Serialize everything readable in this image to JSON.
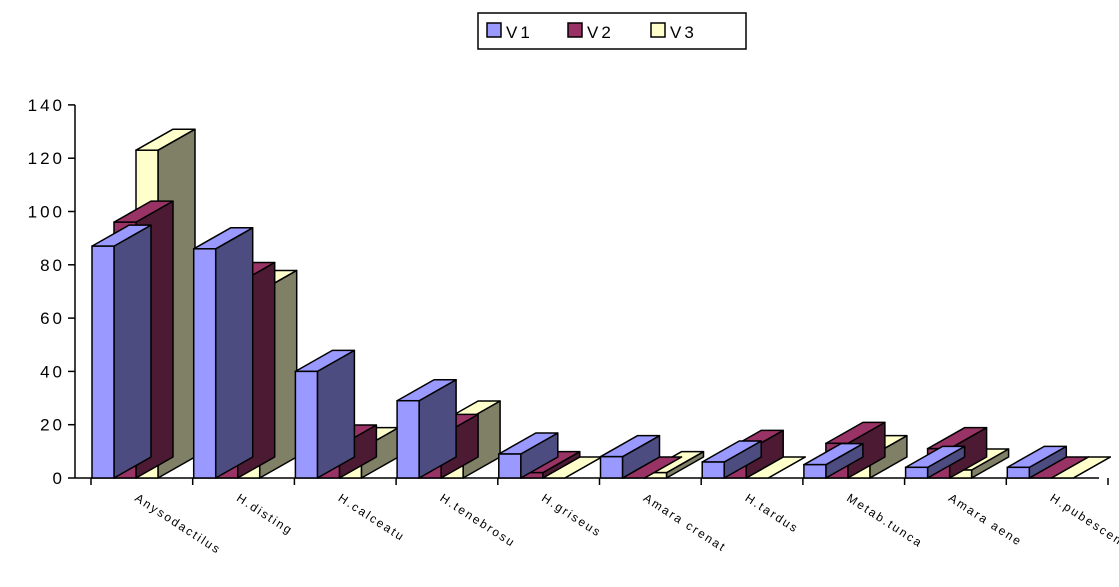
{
  "chart_data": {
    "type": "bar",
    "style": "3d-clustered-column",
    "categories": [
      "Anysodactilus",
      "H.disting",
      "H.calceatus",
      "H.tenebrosus",
      "H.griseus",
      "Amara crenata",
      "H.tardus",
      "Metab.tuncatus",
      "Amara aenea",
      "H.pubescens"
    ],
    "category_labels_visible": [
      "Anysodactilus",
      "H.disting",
      "H.calceatu",
      "H.tenebrosu",
      "H.griseus",
      "Amara crenat",
      "H.tardus",
      "Metab.tunca",
      "Amara aene",
      "H.pubescen"
    ],
    "series": [
      {
        "name": "V1",
        "values": [
          87,
          86,
          40,
          29,
          9,
          8,
          6,
          5,
          4,
          4
        ],
        "color": "#9999ff",
        "side_color": "#4c4c80"
      },
      {
        "name": "V2",
        "values": [
          96,
          73,
          12,
          16,
          2,
          0,
          10,
          13,
          11,
          0
        ],
        "color": "#993366",
        "side_color": "#4c1a33"
      },
      {
        "name": "V3",
        "values": [
          123,
          70,
          11,
          21,
          0,
          2,
          0,
          8,
          3,
          0
        ],
        "color": "#ffffcc",
        "side_color": "#808066"
      }
    ],
    "yticks": [
      "0",
      "20",
      "40",
      "60",
      "80",
      "100",
      "120",
      "140"
    ],
    "ylim": [
      0,
      140
    ],
    "legend_position": "top-center",
    "grid": false,
    "title": "",
    "xlabel": "",
    "ylabel": ""
  }
}
